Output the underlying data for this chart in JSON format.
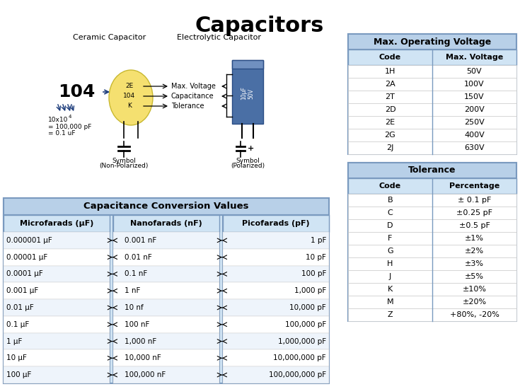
{
  "title": "Capacitors",
  "title_fontsize": 22,
  "bg_color": "#ffffff",
  "ceramic_label": "Ceramic Capacitor",
  "electrolytic_label": "Electrolytic Capacitor",
  "conversion_header": "Capacitance Conversion Values",
  "col_headers": [
    "Microfarads (μF)",
    "Nanofarads (nF)",
    "Picofarads (pF)"
  ],
  "microfarads": [
    "0.000001 μF",
    "0.00001 μF",
    "0.0001 μF",
    "0.001 μF",
    "0.01 μF",
    "0.1 μF",
    "1 μF",
    "10 μF",
    "100 μF"
  ],
  "nanofarads": [
    "0.001 nF",
    "0.01 nF",
    "0.1 nF",
    "1 nF",
    "10 nf",
    "100 nF",
    "1,000 nF",
    "10,000 nF",
    "100,000 nF"
  ],
  "picofarads": [
    "1 pF",
    "10 pF",
    "100 pF",
    "1,000 pF",
    "10,000 pF",
    "100,000 pF",
    "1,000,000 pF",
    "10,000,000 pF",
    "100,000,000 pF"
  ],
  "voltage_header": "Max. Operating Voltage",
  "voltage_col1": [
    "Code",
    "1H",
    "2A",
    "2T",
    "2D",
    "2E",
    "2G",
    "2J"
  ],
  "voltage_col2": [
    "Max. Voltage",
    "50V",
    "100V",
    "150V",
    "200V",
    "250V",
    "400V",
    "630V"
  ],
  "tolerance_header": "Tolerance",
  "tol_col1": [
    "Code",
    "B",
    "C",
    "D",
    "F",
    "G",
    "H",
    "J",
    "K",
    "M",
    "Z"
  ],
  "tol_col2": [
    "Percentage",
    "± 0.1 pF",
    "±0.25 pF",
    "±0.5 pF",
    "±1%",
    "±2%",
    "±3%",
    "±5%",
    "±10%",
    "±20%",
    "+80%, -20%"
  ],
  "section_header_bg": "#b8d0e8",
  "conversion_header_bg": "#b8d0e8",
  "col_header_bg": "#d0e4f4",
  "table_border": "#7a9abf",
  "arrow_color": "#1a3a7a"
}
